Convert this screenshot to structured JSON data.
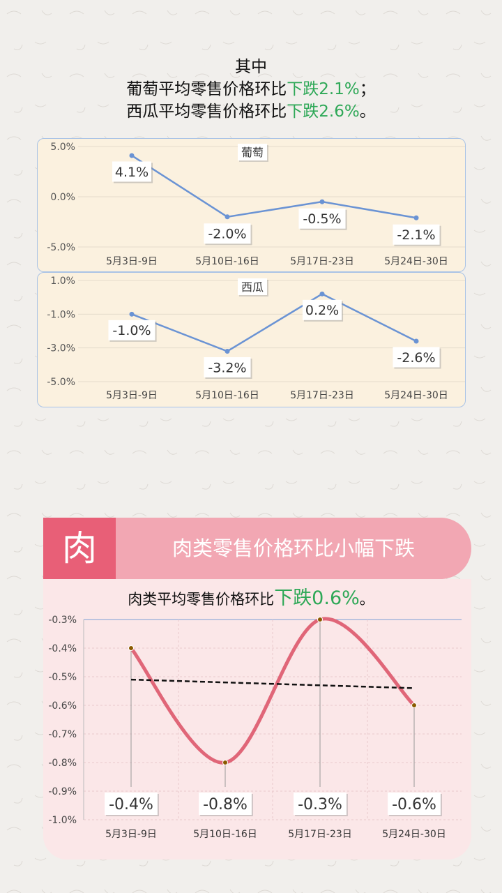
{
  "intro": {
    "line1": "其中",
    "grape_prefix": "葡萄平均零售价格环比",
    "grape_change": "下跌2.1%",
    "grape_suffix": "；",
    "melon_prefix": "西瓜平均零售价格环比",
    "melon_change": "下跌2.6%",
    "melon_suffix": "。"
  },
  "meat": {
    "icon_char": "肉",
    "banner": "肉类零售价格环比小幅下跌",
    "sub_prefix": "肉类平均零售价格环比",
    "sub_change": "下跌0.6%",
    "sub_suffix": "。"
  },
  "colors": {
    "green": "#2ea857",
    "line_blue": "#6a93d4",
    "meat_red": "#e06678",
    "meat_icon": "#e85f77",
    "meat_banner": "#f2a7b3"
  },
  "chart_data": [
    {
      "type": "line",
      "title": "葡萄",
      "categories": [
        "5月3日-9日",
        "5月10日-16日",
        "5月17日-23日",
        "5月24日-30日"
      ],
      "values": [
        4.1,
        -2.0,
        -0.5,
        -2.1
      ],
      "data_labels": [
        "4.1%",
        "-2.0%",
        "-0.5%",
        "-2.1%"
      ],
      "ylim": [
        -5,
        5
      ],
      "yticks": [
        5,
        0,
        -5
      ],
      "ytick_labels": [
        "5.0%",
        "0.0%",
        "-5.0%"
      ],
      "grid": true
    },
    {
      "type": "line",
      "title": "西瓜",
      "categories": [
        "5月3日-9日",
        "5月10日-16日",
        "5月17日-23日",
        "5月24日-30日"
      ],
      "values": [
        -1.0,
        -3.2,
        0.2,
        -2.6
      ],
      "data_labels": [
        "-1.0%",
        "-3.2%",
        "0.2%",
        "-2.6%"
      ],
      "ylim": [
        -5,
        1
      ],
      "yticks": [
        1,
        -1,
        -3,
        -5
      ],
      "ytick_labels": [
        "1.0%",
        "-1.0%",
        "-3.0%",
        "-5.0%"
      ],
      "grid": true
    },
    {
      "type": "line",
      "title": "",
      "categories": [
        "5月3日-9日",
        "5月10日-16日",
        "5月17日-23日",
        "5月24日-30日"
      ],
      "values": [
        -0.4,
        -0.8,
        -0.3,
        -0.6
      ],
      "data_labels": [
        "-0.4%",
        "-0.8%",
        "-0.3%",
        "-0.6%"
      ],
      "ylim": [
        -1.0,
        -0.3
      ],
      "yticks": [
        -0.3,
        -0.4,
        -0.5,
        -0.6,
        -0.7,
        -0.8,
        -0.9,
        -1.0
      ],
      "ytick_labels": [
        "-0.3%",
        "-0.4%",
        "-0.5%",
        "-0.6%",
        "-0.7%",
        "-0.8%",
        "-0.9%",
        "-1.0%"
      ],
      "trendline": true,
      "grid": true
    }
  ]
}
